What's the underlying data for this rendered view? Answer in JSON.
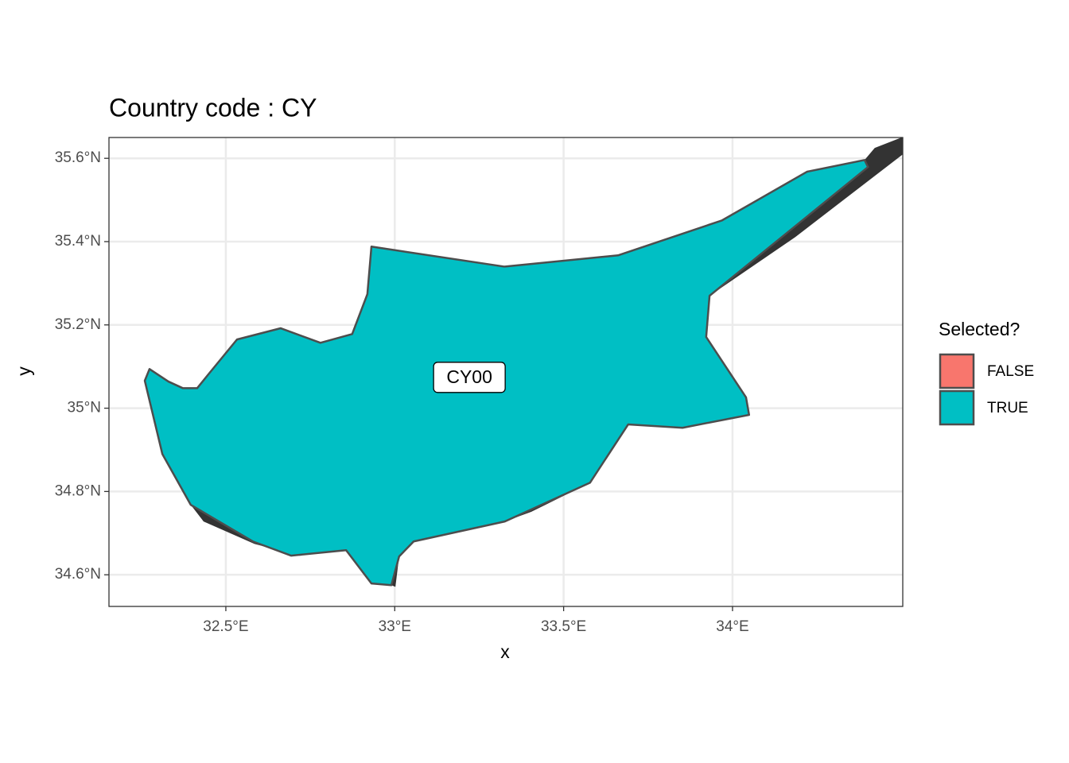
{
  "chart_data": {
    "type": "map",
    "title": "Country code : CY",
    "xlabel": "x",
    "ylabel": "y",
    "xlim": [
      32.154,
      34.504
    ],
    "ylim": [
      34.524,
      35.65
    ],
    "xticks": [
      {
        "value": 32.5,
        "label": "32.5°E"
      },
      {
        "value": 33,
        "label": "33°E"
      },
      {
        "value": 33.5,
        "label": "33.5°E"
      },
      {
        "value": 34,
        "label": "34°E"
      }
    ],
    "yticks": [
      {
        "value": 34.6,
        "label": "34.6°N"
      },
      {
        "value": 34.8,
        "label": "34.8°N"
      },
      {
        "value": 35,
        "label": "35°N"
      },
      {
        "value": 35.2,
        "label": "35.2°N"
      },
      {
        "value": 35.4,
        "label": "35.4°N"
      },
      {
        "value": 35.6,
        "label": "35.6°N"
      }
    ],
    "grid": true,
    "background": {
      "color": "#333333",
      "shapes": [
        {
          "lon": [
            34.391,
            34.421,
            34.516,
            34.516,
            34.186,
            33.932,
            34.401
          ],
          "lat": [
            35.596,
            35.625,
            35.655,
            35.617,
            35.411,
            35.27,
            35.579
          ]
        },
        {
          "lon": [
            32.396,
            32.434,
            32.585,
            32.726,
            32.58
          ],
          "lat": [
            34.768,
            34.728,
            34.674,
            34.644,
            34.68
          ]
        },
        {
          "lon": [
            33.326,
            33.404,
            33.578
          ],
          "lat": [
            34.728,
            34.751,
            34.821
          ]
        },
        {
          "lon": [
            32.99,
            33.002,
            33.013
          ],
          "lat": [
            34.575,
            34.571,
            34.644
          ]
        },
        {
          "lon": [
            32.78,
            32.816,
            32.874
          ],
          "lat": [
            35.157,
            35.148,
            35.178
          ]
        }
      ]
    },
    "region": {
      "color": "#00BFC4",
      "label": "CY00",
      "label_lon": 33.221,
      "label_lat": 35.074,
      "lon": [
        32.26,
        32.274,
        32.33,
        32.373,
        32.415,
        32.448,
        32.533,
        32.662,
        32.78,
        32.874,
        32.919,
        32.931,
        33.324,
        33.661,
        33.969,
        34.221,
        34.391,
        34.401,
        33.932,
        33.922,
        34.04,
        34.049,
        33.852,
        33.691,
        33.578,
        33.326,
        33.056,
        33.013,
        32.99,
        32.931,
        32.856,
        32.693,
        32.58,
        32.396,
        32.312
      ],
      "lat": [
        35.066,
        35.094,
        35.064,
        35.048,
        35.048,
        35.081,
        35.165,
        35.192,
        35.157,
        35.178,
        35.274,
        35.388,
        35.34,
        35.367,
        35.451,
        35.568,
        35.596,
        35.579,
        35.27,
        35.171,
        35.026,
        34.984,
        34.953,
        34.961,
        34.821,
        34.728,
        34.68,
        34.644,
        34.575,
        34.579,
        34.659,
        34.646,
        34.68,
        34.768,
        34.89
      ]
    },
    "legend": {
      "title": "Selected?",
      "entries": [
        {
          "name": "FALSE",
          "color": "#F8766D"
        },
        {
          "name": "TRUE",
          "color": "#00BFC4"
        }
      ]
    }
  }
}
